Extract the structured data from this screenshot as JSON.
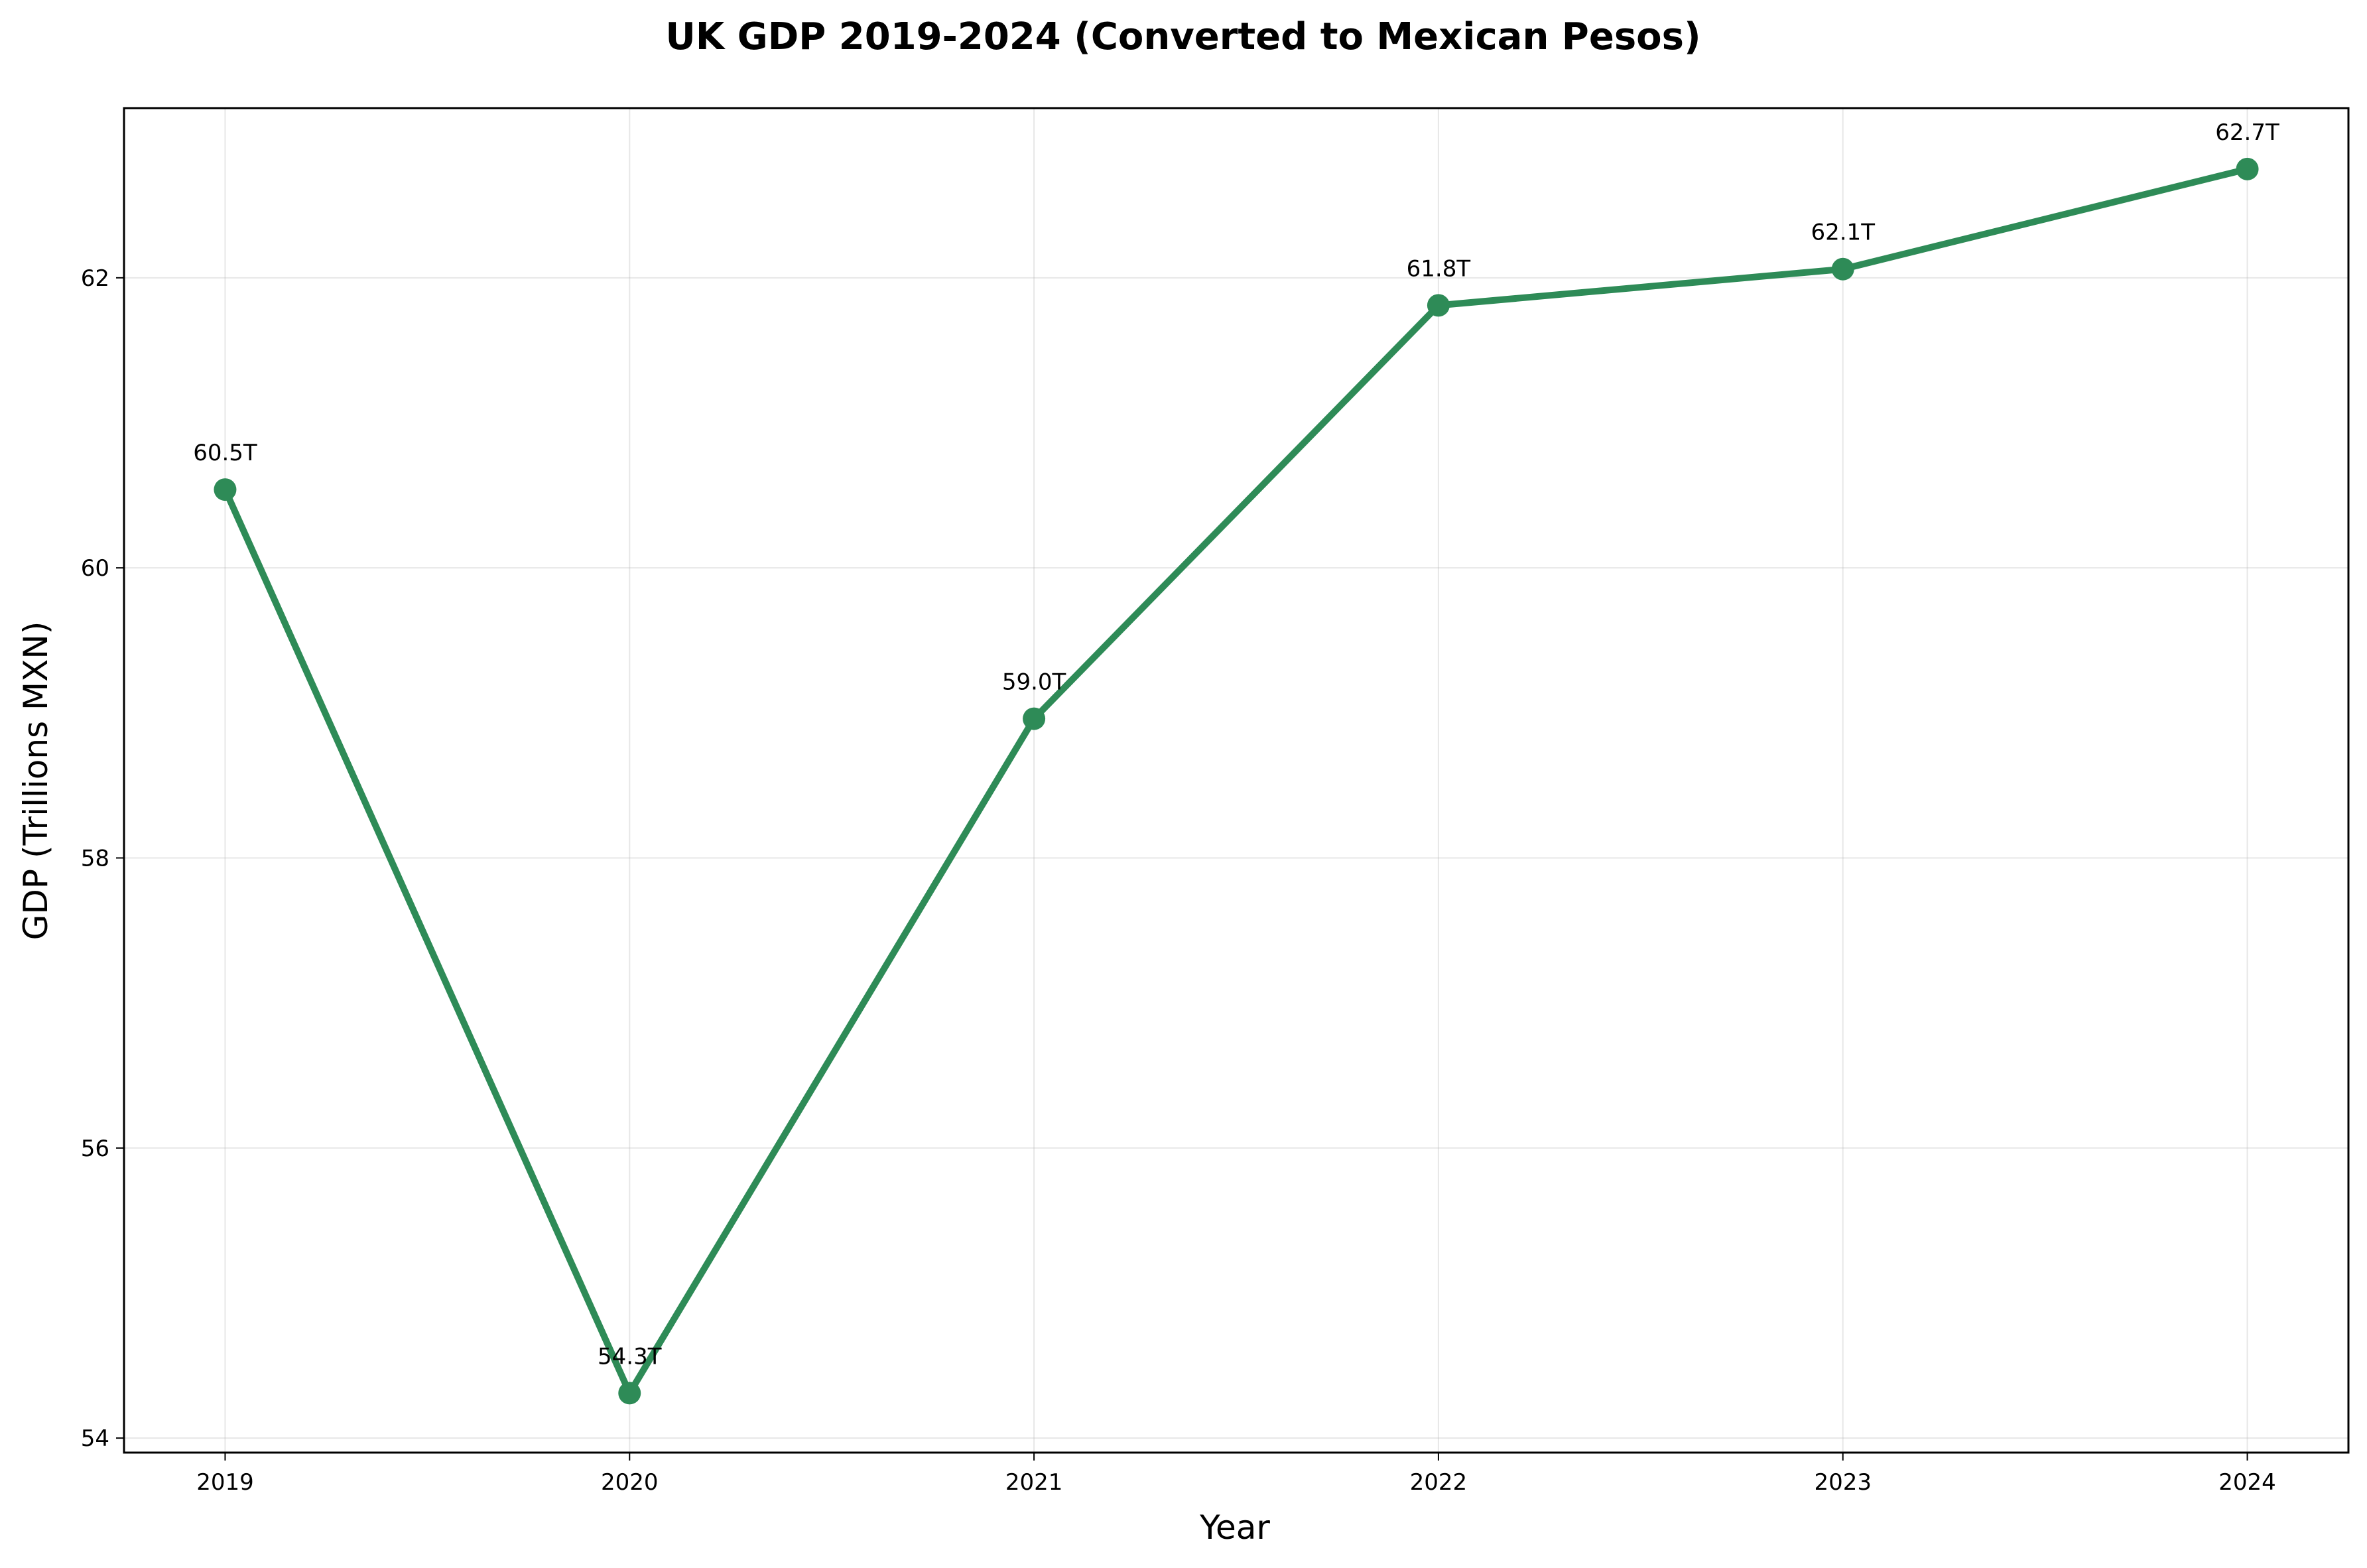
{
  "chart_data": {
    "type": "line",
    "title": "UK GDP 2019-2024 (Converted to Mexican Pesos)",
    "xlabel": "Year",
    "ylabel": "GDP (Trillions MXN)",
    "x": [
      2019,
      2020,
      2021,
      2022,
      2023,
      2024
    ],
    "x_tick_labels": [
      "2019",
      "2020",
      "2021",
      "2022",
      "2023",
      "2024"
    ],
    "y_ticks": [
      54,
      56,
      58,
      60,
      62
    ],
    "y_tick_labels": [
      "54",
      "56",
      "58",
      "60",
      "62"
    ],
    "series": [
      {
        "values": [
          60.54,
          54.31,
          58.96,
          61.81,
          62.06,
          62.75
        ],
        "data_labels": [
          "60.5T",
          "54.3T",
          "59.0T",
          "61.8T",
          "62.1T",
          "62.7T"
        ],
        "color": "#2e8b57"
      }
    ],
    "xlim": [
      2018.75,
      2024.25
    ],
    "ylim": [
      53.9,
      63.17
    ],
    "grid": true,
    "legend": "none"
  }
}
